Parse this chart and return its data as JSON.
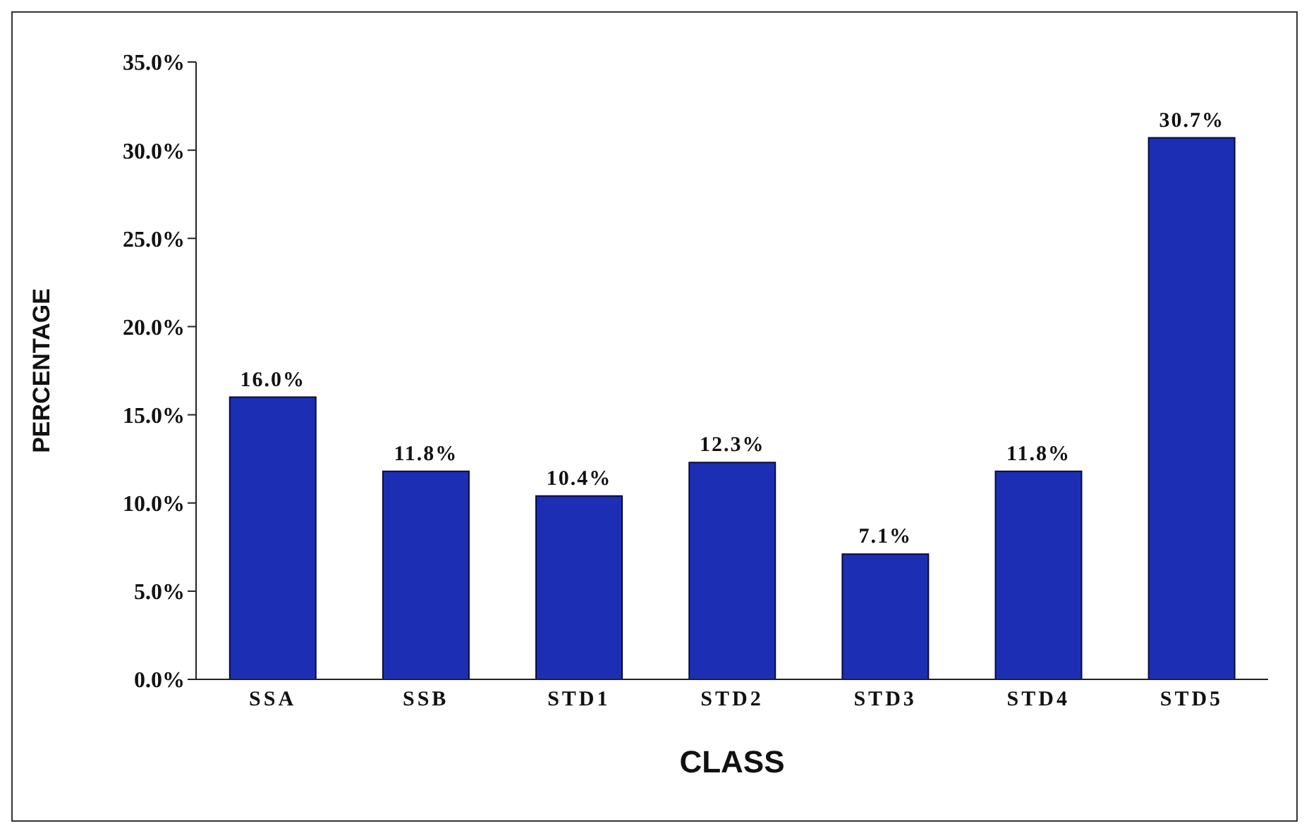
{
  "chart_data": {
    "type": "bar",
    "xlabel": "CLASS",
    "ylabel": "PERCENTAGE",
    "categories": [
      "SSA",
      "SSB",
      "STD1",
      "STD2",
      "STD3",
      "STD4",
      "STD5"
    ],
    "values": [
      16.0,
      11.8,
      10.4,
      12.3,
      7.1,
      11.8,
      30.7
    ],
    "value_labels": [
      "16.0%",
      "11.8%",
      "10.4%",
      "12.3%",
      "7.1%",
      "11.8%",
      "30.7%"
    ],
    "color": "#1c2fb4",
    "ylim": [
      0,
      35
    ],
    "yticks": [
      {
        "value": 0,
        "label": "0.0%"
      },
      {
        "value": 5,
        "label": "5.0%"
      },
      {
        "value": 10,
        "label": "10.0%"
      },
      {
        "value": 15,
        "label": "15.0%"
      },
      {
        "value": 20,
        "label": "20.0%"
      },
      {
        "value": 25,
        "label": "25.0%"
      },
      {
        "value": 30,
        "label": "30.0%"
      },
      {
        "value": 35,
        "label": "35.0%"
      }
    ],
    "grid": false,
    "legend": false
  }
}
